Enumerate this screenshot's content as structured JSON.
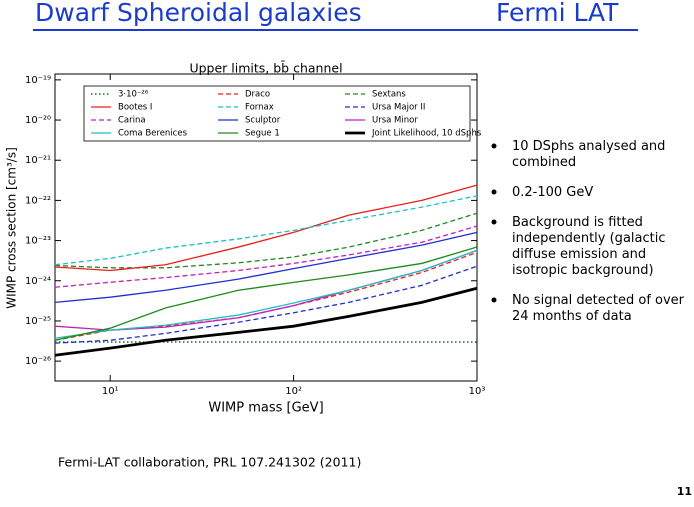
{
  "slide": {
    "title_left": "Dwarf Spheroidal galaxies",
    "title_right": "Fermi LAT",
    "bullets": [
      "10 DSphs analysed and combined",
      "0.2-100 GeV",
      "Background is fitted independently (galactic diffuse emission  and isotropic background)",
      "No signal detected of over 24 months of data"
    ],
    "citation": "Fermi-LAT collaboration,  PRL 107.241302 (2011)",
    "page_number": "11"
  },
  "chart_data": {
    "type": "line",
    "title": "Upper limits, bb̄ channel",
    "x_label": "WIMP mass [GeV]",
    "y_label": "WIMP cross section [cm³/s]",
    "xscale": "log",
    "yscale": "log",
    "xlim": [
      5,
      1000
    ],
    "ylim": [
      3.2e-27,
      1.4e-19
    ],
    "xticks": [
      {
        "value": 10,
        "label": "10¹"
      },
      {
        "value": 100,
        "label": "10²"
      },
      {
        "value": 1000,
        "label": "10³"
      }
    ],
    "yticks": [
      {
        "value": 1e-26,
        "label": "10⁻²⁶"
      },
      {
        "value": 1e-25,
        "label": "10⁻²⁵"
      },
      {
        "value": 1e-24,
        "label": "10⁻²⁴"
      },
      {
        "value": 1e-23,
        "label": "10⁻²³"
      },
      {
        "value": 1e-22,
        "label": "10⁻²²"
      },
      {
        "value": 1e-21,
        "label": "10⁻²¹"
      },
      {
        "value": 1e-20,
        "label": "10⁻²⁰"
      },
      {
        "value": 1e-19,
        "label": "10⁻¹⁹"
      }
    ],
    "x": [
      5,
      10,
      20,
      50,
      100,
      200,
      500,
      1000
    ],
    "series": [
      {
        "name": "3·10⁻²⁶",
        "color": "#008000",
        "dash": "dotted",
        "values": [
          3e-26,
          3e-26,
          3e-26,
          3e-26,
          3e-26,
          3e-26,
          3e-26,
          3e-26
        ]
      },
      {
        "name": "Draco",
        "color": "#e8201c",
        "dash": "dashed",
        "values": [
          3.3e-26,
          5.9e-26,
          7.4e-26,
          1.2e-25,
          2.4e-25,
          5.2e-25,
          1.6e-24,
          5.1e-24
        ]
      },
      {
        "name": "Sextans",
        "color": "#1e8a1e",
        "dash": "dashed",
        "values": [
          2.4e-24,
          2.1e-24,
          2.1e-24,
          2.8e-24,
          3.9e-24,
          6.9e-24,
          1.8e-23,
          4.8e-23
        ]
      },
      {
        "name": "Bootes I",
        "color": "#e8201c",
        "dash": "solid",
        "values": [
          2.2e-24,
          1.8e-24,
          2.5e-24,
          6.9e-24,
          1.6e-23,
          4.3e-23,
          1e-22,
          2.4e-22
        ]
      },
      {
        "name": "Fornax",
        "color": "#20c0c0",
        "dash": "dashed",
        "values": [
          2.5e-24,
          3.6e-24,
          6.5e-24,
          1.1e-23,
          1.8e-23,
          3.2e-23,
          6.8e-23,
          1.3e-22
        ]
      },
      {
        "name": "Ursa Major II",
        "color": "#2030d0",
        "dash": "dashed",
        "values": [
          2.8e-26,
          3.3e-26,
          4.9e-26,
          9.3e-26,
          1.6e-25,
          2.9e-25,
          7.7e-25,
          2.3e-24
        ]
      },
      {
        "name": "Carina",
        "color": "#c020c0",
        "dash": "dashed",
        "values": [
          6.9e-25,
          9.2e-25,
          1.2e-24,
          1.8e-24,
          2.7e-24,
          4.4e-24,
          9.1e-24,
          2.3e-23
        ]
      },
      {
        "name": "Sculptor",
        "color": "#2030d0",
        "dash": "solid",
        "values": [
          2.9e-25,
          3.9e-25,
          5.8e-25,
          1.1e-24,
          2e-24,
          3.6e-24,
          7.7e-24,
          1.6e-23
        ]
      },
      {
        "name": "Ursa Minor",
        "color": "#c020c0",
        "dash": "solid",
        "values": [
          7.4e-26,
          5.9e-26,
          7e-26,
          1.2e-25,
          2.4e-25,
          5.8e-25,
          1.8e-24,
          5.7e-24
        ]
      },
      {
        "name": "Coma Berenices",
        "color": "#20c0c0",
        "dash": "solid",
        "values": [
          3.7e-26,
          5.9e-26,
          7.8e-26,
          1.4e-25,
          2.8e-25,
          5.8e-25,
          1.8e-24,
          5.7e-24
        ]
      },
      {
        "name": "Segue 1",
        "color": "#1e8a1e",
        "dash": "solid",
        "values": [
          3.3e-26,
          6.6e-26,
          2.1e-25,
          5.8e-25,
          9.1e-25,
          1.4e-24,
          2.7e-24,
          6.9e-24
        ]
      },
      {
        "name": "Joint Likelihood, 10 dSphs",
        "color": "#000000",
        "dash": "thick",
        "values": [
          1.4e-26,
          2.1e-26,
          3.3e-26,
          5.2e-26,
          7.4e-26,
          1.3e-25,
          2.9e-25,
          6.5e-25
        ]
      }
    ]
  }
}
